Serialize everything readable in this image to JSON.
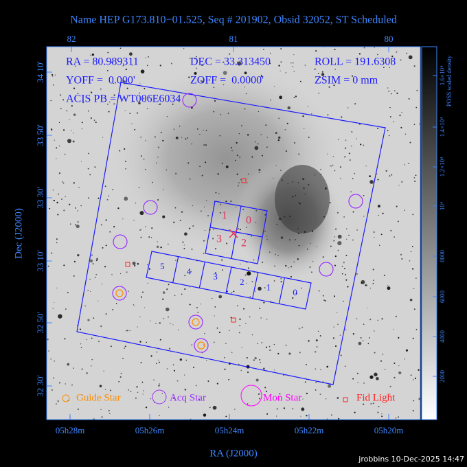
{
  "header": {
    "title": "Name HEP G173.810−01.525, Seq # 201902, Obsid 32052, ST Scheduled"
  },
  "axes": {
    "top_ticks": [
      "82",
      "81",
      "80"
    ],
    "left_ticks": [
      "34 10'",
      "33 50'",
      "33 30'",
      "33 10'",
      "32 50'",
      "32 30'"
    ],
    "bottom_ticks": [
      "05h28m",
      "05h26m",
      "05h24m",
      "05h22m",
      "05h20m"
    ],
    "x_title": "RA (J2000)",
    "y_title": "Dec (J2000)"
  },
  "info": [
    "RA = 80.989311",
    "DEC = 33.313450",
    "ROLL = 191.6308",
    "YOFF =  0.000'",
    "ZOFF =  0.0000'",
    "ZSIM = 0 mm",
    "ACIS PB = WT006E6034"
  ],
  "acis_i_labels": [
    "1",
    "0",
    "3",
    "2"
  ],
  "acis_s_labels": [
    "5",
    "4",
    "3",
    "2",
    "1",
    "0"
  ],
  "legend": [
    "Guide Star",
    "Acq Star",
    "Mon Star",
    "Fid Light"
  ],
  "colorbar": {
    "ticks": [
      "2000",
      "4000",
      "6000",
      "8000",
      "10⁴",
      "1.2×10⁴",
      "1.4×10⁴",
      "1.6×10⁴"
    ],
    "label": "POSS scaled density"
  },
  "footer": "jrobbins 10-Dec-2025 14:47"
}
